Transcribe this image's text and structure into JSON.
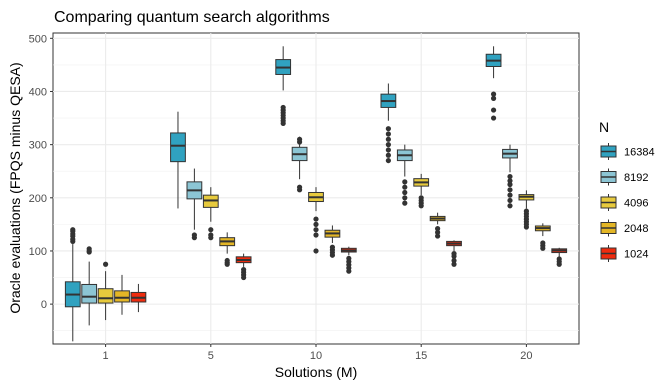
{
  "chart_data": {
    "type": "boxplot",
    "title": "Comparing quantum search algorithms",
    "xlabel": "Solutions (M)",
    "ylabel": "Oracle evaluations (FPQS minus QESA)",
    "categories": [
      "1",
      "5",
      "10",
      "15",
      "20"
    ],
    "ylim": [
      -75,
      510
    ],
    "yticks": [
      0,
      100,
      200,
      300,
      400,
      500
    ],
    "grid": true,
    "legend": {
      "title": "N",
      "position": "right",
      "entries": [
        "16384",
        "8192",
        "4096",
        "2048",
        "1024"
      ]
    },
    "series": [
      {
        "name": "16384",
        "color": "#30a2c0",
        "boxes": [
          {
            "min": -70,
            "q1": -5,
            "median": 18,
            "q3": 42,
            "max": 113,
            "outliers": [
              118,
              122,
              128,
              132,
              137,
              140
            ]
          },
          {
            "min": 180,
            "q1": 268,
            "median": 298,
            "q3": 322,
            "max": 362,
            "outliers": []
          },
          {
            "min": 402,
            "q1": 432,
            "median": 445,
            "q3": 460,
            "max": 485,
            "outliers": [
              340,
              345,
              350,
              355,
              360,
              365,
              370
            ]
          },
          {
            "min": 345,
            "q1": 370,
            "median": 382,
            "q3": 395,
            "max": 415,
            "outliers": [
              270,
              280,
              290,
              300,
              310,
              320,
              330
            ]
          },
          {
            "min": 425,
            "q1": 447,
            "median": 458,
            "q3": 470,
            "max": 485,
            "outliers": [
              350,
              365,
              387,
              395
            ]
          }
        ]
      },
      {
        "name": "8192",
        "color": "#8cc5d4",
        "boxes": [
          {
            "min": -40,
            "q1": 2,
            "median": 14,
            "q3": 37,
            "max": 80,
            "outliers": [
              98,
              100,
              104
            ]
          },
          {
            "min": 140,
            "q1": 198,
            "median": 214,
            "q3": 230,
            "max": 255,
            "outliers": [
              125,
              130
            ]
          },
          {
            "min": 235,
            "q1": 270,
            "median": 282,
            "q3": 295,
            "max": 315,
            "outliers": [
              215,
              220,
              305,
              310
            ]
          },
          {
            "min": 240,
            "q1": 270,
            "median": 280,
            "q3": 290,
            "max": 300,
            "outliers": [
              190,
              200,
              210,
              220,
              230
            ]
          },
          {
            "min": 248,
            "q1": 275,
            "median": 283,
            "q3": 291,
            "max": 300,
            "outliers": [
              185,
              195,
              205,
              215,
              225,
              232,
              240
            ]
          }
        ]
      },
      {
        "name": "4096",
        "color": "#e7ca3d",
        "boxes": [
          {
            "min": -30,
            "q1": 2,
            "median": 11,
            "q3": 29,
            "max": 62,
            "outliers": [
              75
            ]
          },
          {
            "min": 155,
            "q1": 182,
            "median": 195,
            "q3": 205,
            "max": 220,
            "outliers": [
              125,
              130,
              140
            ]
          },
          {
            "min": 175,
            "q1": 193,
            "median": 201,
            "q3": 210,
            "max": 220,
            "outliers": [
              100,
              130,
              140,
              150,
              160
            ]
          },
          {
            "min": 205,
            "q1": 222,
            "median": 229,
            "q3": 236,
            "max": 245,
            "outliers": [
              185,
              190,
              195,
              200
            ]
          },
          {
            "min": 180,
            "q1": 196,
            "median": 202,
            "q3": 206,
            "max": 214,
            "outliers": [
              145,
              150,
              155,
              160,
              165,
              170,
              175
            ]
          }
        ]
      },
      {
        "name": "2048",
        "color": "#e3b626",
        "boxes": [
          {
            "min": -20,
            "q1": 4,
            "median": 12,
            "q3": 25,
            "max": 55,
            "outliers": []
          },
          {
            "min": 95,
            "q1": 110,
            "median": 118,
            "q3": 125,
            "max": 135,
            "outliers": [
              75,
              78,
              82
            ]
          },
          {
            "min": 115,
            "q1": 126,
            "median": 133,
            "q3": 139,
            "max": 148,
            "outliers": [
              92,
              97,
              102,
              107
            ]
          },
          {
            "min": 150,
            "q1": 157,
            "median": 161,
            "q3": 165,
            "max": 172,
            "outliers": [
              128,
              135,
              142
            ]
          },
          {
            "min": 128,
            "q1": 138,
            "median": 143,
            "q3": 147,
            "max": 152,
            "outliers": [
              105,
              110,
              115
            ]
          }
        ]
      },
      {
        "name": "1024",
        "color": "#ee2b0e",
        "boxes": [
          {
            "min": -15,
            "q1": 4,
            "median": 12,
            "q3": 22,
            "max": 38,
            "outliers": []
          },
          {
            "min": 70,
            "q1": 78,
            "median": 83,
            "q3": 89,
            "max": 95,
            "outliers": [
              50,
              55,
              60,
              65
            ]
          },
          {
            "min": 92,
            "q1": 98,
            "median": 101,
            "q3": 105,
            "max": 108,
            "outliers": [
              62,
              68,
              74,
              80,
              86
            ]
          },
          {
            "min": 100,
            "q1": 110,
            "median": 114,
            "q3": 118,
            "max": 120,
            "outliers": [
              75,
              82,
              90,
              95
            ]
          },
          {
            "min": 88,
            "q1": 97,
            "median": 101,
            "q3": 104,
            "max": 106,
            "outliers": [
              75,
              80,
              85
            ]
          }
        ]
      }
    ]
  }
}
